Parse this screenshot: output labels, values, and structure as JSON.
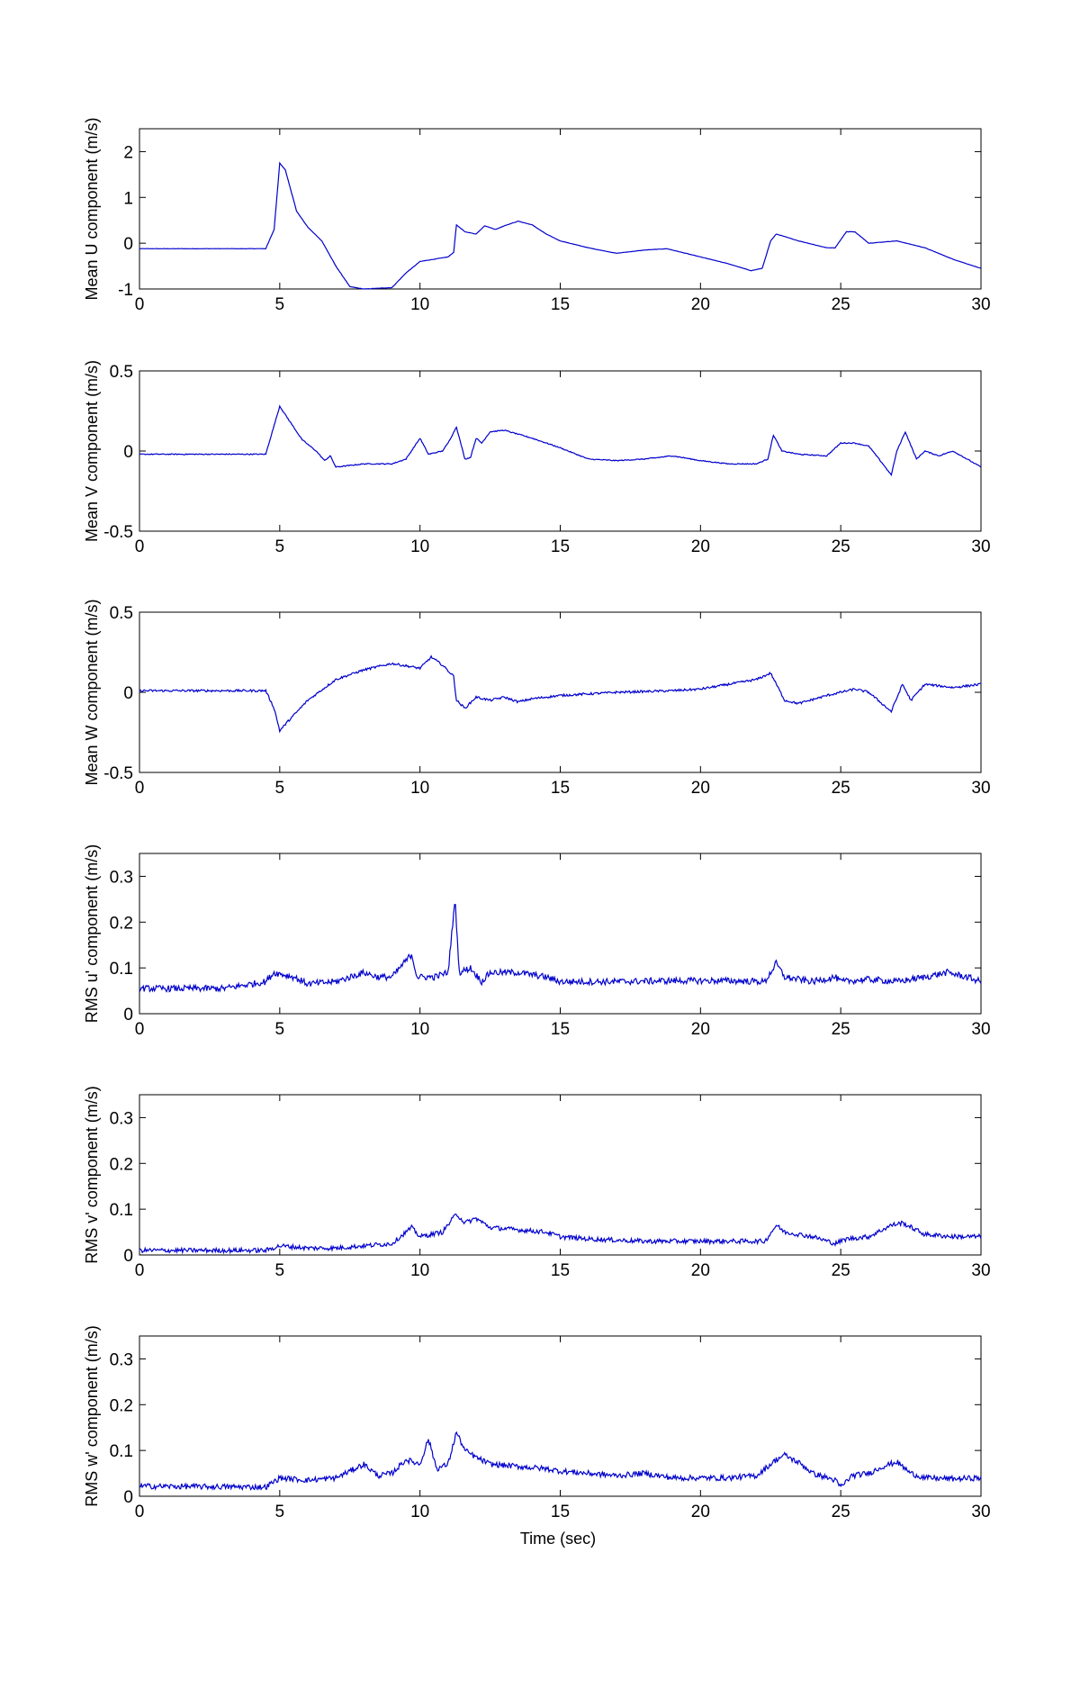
{
  "colors": {
    "line": "#0000cc",
    "axes": "#000000",
    "background": "#ffffff"
  },
  "xlabel": "Time (sec)",
  "chart_data": [
    {
      "type": "line",
      "ylabel": "Mean U component (m/s)",
      "xlim": [
        0,
        30
      ],
      "ylim": [
        -1,
        2.5
      ],
      "xticks": [
        0,
        5,
        10,
        15,
        20,
        25,
        30
      ],
      "yticks": [
        -1,
        0,
        1,
        2
      ],
      "noise": 0.003,
      "points": [
        [
          0,
          -0.12
        ],
        [
          4.5,
          -0.12
        ],
        [
          4.8,
          0.3
        ],
        [
          5.0,
          1.75
        ],
        [
          5.2,
          1.6
        ],
        [
          5.6,
          0.7
        ],
        [
          6.0,
          0.35
        ],
        [
          6.5,
          0.05
        ],
        [
          7.0,
          -0.5
        ],
        [
          7.5,
          -0.95
        ],
        [
          8.0,
          -1.0
        ],
        [
          9.0,
          -0.97
        ],
        [
          9.5,
          -0.65
        ],
        [
          10.0,
          -0.4
        ],
        [
          11.0,
          -0.3
        ],
        [
          11.2,
          -0.2
        ],
        [
          11.3,
          0.4
        ],
        [
          11.6,
          0.25
        ],
        [
          12.0,
          0.2
        ],
        [
          12.3,
          0.38
        ],
        [
          12.7,
          0.3
        ],
        [
          13.0,
          0.38
        ],
        [
          13.5,
          0.48
        ],
        [
          14.0,
          0.4
        ],
        [
          14.5,
          0.2
        ],
        [
          15.0,
          0.05
        ],
        [
          16.0,
          -0.1
        ],
        [
          17.0,
          -0.22
        ],
        [
          18.0,
          -0.15
        ],
        [
          18.8,
          -0.12
        ],
        [
          20.0,
          -0.3
        ],
        [
          21.0,
          -0.45
        ],
        [
          21.8,
          -0.6
        ],
        [
          22.2,
          -0.55
        ],
        [
          22.5,
          0.05
        ],
        [
          22.7,
          0.2
        ],
        [
          23.5,
          0.05
        ],
        [
          24.5,
          -0.1
        ],
        [
          24.8,
          -0.1
        ],
        [
          25.2,
          0.25
        ],
        [
          25.5,
          0.25
        ],
        [
          26.0,
          0.0
        ],
        [
          27.0,
          0.05
        ],
        [
          28.0,
          -0.1
        ],
        [
          29.0,
          -0.35
        ],
        [
          30.0,
          -0.55
        ]
      ]
    },
    {
      "type": "line",
      "ylabel": "Mean V component (m/s)",
      "xlim": [
        0,
        30
      ],
      "ylim": [
        -0.5,
        0.5
      ],
      "xticks": [
        0,
        5,
        10,
        15,
        20,
        25,
        30
      ],
      "yticks": [
        -0.5,
        0,
        0.5
      ],
      "noise": 0.003,
      "points": [
        [
          0,
          -0.02
        ],
        [
          4.5,
          -0.02
        ],
        [
          4.7,
          0.1
        ],
        [
          5.0,
          0.28
        ],
        [
          5.3,
          0.2
        ],
        [
          5.8,
          0.07
        ],
        [
          6.3,
          0.0
        ],
        [
          6.6,
          -0.06
        ],
        [
          6.8,
          -0.03
        ],
        [
          7.0,
          -0.1
        ],
        [
          8.0,
          -0.08
        ],
        [
          9.0,
          -0.08
        ],
        [
          9.5,
          -0.05
        ],
        [
          10.0,
          0.08
        ],
        [
          10.3,
          -0.02
        ],
        [
          10.8,
          0.0
        ],
        [
          11.0,
          0.05
        ],
        [
          11.3,
          0.15
        ],
        [
          11.6,
          -0.05
        ],
        [
          11.8,
          -0.04
        ],
        [
          12.0,
          0.08
        ],
        [
          12.2,
          0.05
        ],
        [
          12.5,
          0.12
        ],
        [
          13.0,
          0.13
        ],
        [
          14.0,
          0.08
        ],
        [
          15.0,
          0.02
        ],
        [
          16.0,
          -0.05
        ],
        [
          17.0,
          -0.06
        ],
        [
          18.0,
          -0.05
        ],
        [
          19.0,
          -0.03
        ],
        [
          20.0,
          -0.06
        ],
        [
          21.0,
          -0.08
        ],
        [
          22.0,
          -0.08
        ],
        [
          22.4,
          -0.05
        ],
        [
          22.6,
          0.1
        ],
        [
          22.9,
          0.0
        ],
        [
          23.5,
          -0.02
        ],
        [
          24.5,
          -0.03
        ],
        [
          25.0,
          0.05
        ],
        [
          25.5,
          0.05
        ],
        [
          26.0,
          0.03
        ],
        [
          26.5,
          -0.08
        ],
        [
          26.8,
          -0.15
        ],
        [
          27.0,
          0.0
        ],
        [
          27.3,
          0.12
        ],
        [
          27.7,
          -0.05
        ],
        [
          28.0,
          0.0
        ],
        [
          28.5,
          -0.03
        ],
        [
          29.0,
          0.0
        ],
        [
          30.0,
          -0.1
        ]
      ]
    },
    {
      "type": "line",
      "ylabel": "Mean W component (m/s)",
      "xlim": [
        0,
        30
      ],
      "ylim": [
        -0.5,
        0.5
      ],
      "xticks": [
        0,
        5,
        10,
        15,
        20,
        25,
        30
      ],
      "yticks": [
        -0.5,
        0,
        0.5
      ],
      "noise": 0.007,
      "points": [
        [
          0,
          0.01
        ],
        [
          4.5,
          0.01
        ],
        [
          4.8,
          -0.1
        ],
        [
          5.0,
          -0.24
        ],
        [
          5.3,
          -0.18
        ],
        [
          6.0,
          -0.05
        ],
        [
          7.0,
          0.08
        ],
        [
          8.0,
          0.14
        ],
        [
          9.0,
          0.18
        ],
        [
          10.0,
          0.15
        ],
        [
          10.4,
          0.22
        ],
        [
          10.8,
          0.17
        ],
        [
          11.2,
          0.1
        ],
        [
          11.3,
          -0.05
        ],
        [
          11.6,
          -0.1
        ],
        [
          12.0,
          -0.03
        ],
        [
          12.5,
          -0.05
        ],
        [
          13.0,
          -0.03
        ],
        [
          13.5,
          -0.06
        ],
        [
          14.0,
          -0.04
        ],
        [
          15.0,
          -0.02
        ],
        [
          17.0,
          0.0
        ],
        [
          19.0,
          0.01
        ],
        [
          20.0,
          0.02
        ],
        [
          21.0,
          0.05
        ],
        [
          22.0,
          0.08
        ],
        [
          22.5,
          0.12
        ],
        [
          23.0,
          -0.05
        ],
        [
          23.5,
          -0.07
        ],
        [
          24.5,
          -0.02
        ],
        [
          25.5,
          0.02
        ],
        [
          26.0,
          0.0
        ],
        [
          26.8,
          -0.12
        ],
        [
          27.2,
          0.05
        ],
        [
          27.5,
          -0.05
        ],
        [
          28.0,
          0.05
        ],
        [
          29.0,
          0.03
        ],
        [
          30.0,
          0.05
        ]
      ]
    },
    {
      "type": "line",
      "ylabel": "RMS u' component (m/s)",
      "xlim": [
        0,
        30
      ],
      "ylim": [
        0,
        0.35
      ],
      "xticks": [
        0,
        5,
        10,
        15,
        20,
        25,
        30
      ],
      "yticks": [
        0,
        0.1,
        0.2,
        0.3
      ],
      "noise": 0.007,
      "points": [
        [
          0,
          0.055
        ],
        [
          3.0,
          0.055
        ],
        [
          4.5,
          0.07
        ],
        [
          4.8,
          0.09
        ],
        [
          5.5,
          0.08
        ],
        [
          6.0,
          0.065
        ],
        [
          7.0,
          0.07
        ],
        [
          8.0,
          0.09
        ],
        [
          8.5,
          0.08
        ],
        [
          9.0,
          0.08
        ],
        [
          9.7,
          0.13
        ],
        [
          9.9,
          0.08
        ],
        [
          10.5,
          0.08
        ],
        [
          11.0,
          0.09
        ],
        [
          11.25,
          0.25
        ],
        [
          11.4,
          0.09
        ],
        [
          11.8,
          0.1
        ],
        [
          12.2,
          0.07
        ],
        [
          12.5,
          0.09
        ],
        [
          13.5,
          0.09
        ],
        [
          14.5,
          0.08
        ],
        [
          15.0,
          0.07
        ],
        [
          17.0,
          0.07
        ],
        [
          19.0,
          0.072
        ],
        [
          21.0,
          0.072
        ],
        [
          22.3,
          0.07
        ],
        [
          22.7,
          0.11
        ],
        [
          23.0,
          0.08
        ],
        [
          24.0,
          0.07
        ],
        [
          24.8,
          0.08
        ],
        [
          25.0,
          0.07
        ],
        [
          26.0,
          0.075
        ],
        [
          27.0,
          0.07
        ],
        [
          28.0,
          0.08
        ],
        [
          28.8,
          0.09
        ],
        [
          29.5,
          0.08
        ],
        [
          30.0,
          0.07
        ]
      ]
    },
    {
      "type": "line",
      "ylabel": "RMS v' component (m/s)",
      "xlim": [
        0,
        30
      ],
      "ylim": [
        0,
        0.35
      ],
      "xticks": [
        0,
        5,
        10,
        15,
        20,
        25,
        30
      ],
      "yticks": [
        0,
        0.1,
        0.2,
        0.3
      ],
      "noise": 0.005,
      "points": [
        [
          0,
          0.01
        ],
        [
          4.5,
          0.01
        ],
        [
          5.0,
          0.02
        ],
        [
          6.0,
          0.015
        ],
        [
          7.0,
          0.015
        ],
        [
          8.0,
          0.02
        ],
        [
          9.0,
          0.025
        ],
        [
          9.7,
          0.06
        ],
        [
          10.0,
          0.04
        ],
        [
          10.8,
          0.05
        ],
        [
          11.3,
          0.09
        ],
        [
          11.6,
          0.07
        ],
        [
          12.0,
          0.08
        ],
        [
          12.5,
          0.06
        ],
        [
          13.5,
          0.055
        ],
        [
          14.5,
          0.05
        ],
        [
          15.0,
          0.04
        ],
        [
          16.0,
          0.035
        ],
        [
          18.0,
          0.03
        ],
        [
          20.0,
          0.03
        ],
        [
          21.0,
          0.03
        ],
        [
          22.3,
          0.03
        ],
        [
          22.7,
          0.065
        ],
        [
          23.0,
          0.05
        ],
        [
          24.0,
          0.04
        ],
        [
          24.8,
          0.025
        ],
        [
          25.2,
          0.035
        ],
        [
          26.0,
          0.04
        ],
        [
          26.8,
          0.065
        ],
        [
          27.2,
          0.07
        ],
        [
          28.0,
          0.045
        ],
        [
          29.0,
          0.04
        ],
        [
          30.0,
          0.04
        ]
      ]
    },
    {
      "type": "line",
      "ylabel": "RMS w' component (m/s)",
      "xlim": [
        0,
        30
      ],
      "ylim": [
        0,
        0.35
      ],
      "xticks": [
        0,
        5,
        10,
        15,
        20,
        25,
        30
      ],
      "yticks": [
        0,
        0.1,
        0.2,
        0.3
      ],
      "noise": 0.006,
      "points": [
        [
          0,
          0.022
        ],
        [
          4.5,
          0.02
        ],
        [
          5.0,
          0.04
        ],
        [
          6.0,
          0.035
        ],
        [
          7.0,
          0.04
        ],
        [
          8.0,
          0.07
        ],
        [
          8.5,
          0.045
        ],
        [
          9.0,
          0.05
        ],
        [
          9.5,
          0.08
        ],
        [
          10.0,
          0.07
        ],
        [
          10.3,
          0.125
        ],
        [
          10.6,
          0.06
        ],
        [
          11.0,
          0.07
        ],
        [
          11.3,
          0.14
        ],
        [
          11.6,
          0.1
        ],
        [
          12.0,
          0.085
        ],
        [
          12.5,
          0.07
        ],
        [
          13.5,
          0.065
        ],
        [
          14.5,
          0.06
        ],
        [
          15.0,
          0.055
        ],
        [
          16.0,
          0.05
        ],
        [
          17.0,
          0.045
        ],
        [
          18.0,
          0.05
        ],
        [
          19.0,
          0.04
        ],
        [
          20.0,
          0.04
        ],
        [
          21.0,
          0.04
        ],
        [
          22.0,
          0.045
        ],
        [
          22.7,
          0.08
        ],
        [
          23.0,
          0.09
        ],
        [
          23.6,
          0.07
        ],
        [
          24.0,
          0.05
        ],
        [
          24.8,
          0.035
        ],
        [
          25.0,
          0.02
        ],
        [
          25.4,
          0.045
        ],
        [
          26.0,
          0.05
        ],
        [
          26.5,
          0.065
        ],
        [
          27.0,
          0.075
        ],
        [
          27.5,
          0.05
        ],
        [
          28.0,
          0.04
        ],
        [
          29.0,
          0.038
        ],
        [
          30.0,
          0.04
        ]
      ]
    }
  ]
}
